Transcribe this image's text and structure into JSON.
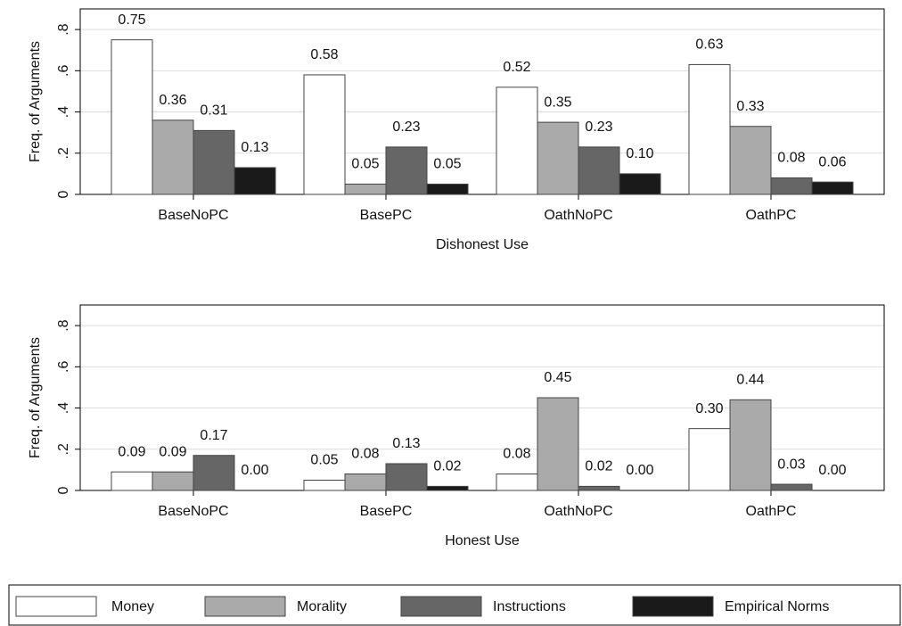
{
  "chart_data": [
    {
      "type": "bar",
      "ylabel": "Freq. of Arguments",
      "xlabel": "Dishonest Use",
      "categories": [
        "BaseNoPC",
        "BasePC",
        "OathNoPC",
        "OathPC"
      ],
      "series": [
        {
          "name": "Money",
          "color": "#ffffff",
          "values": [
            0.75,
            0.58,
            0.52,
            0.63
          ],
          "value_labels": [
            "0.75",
            "0.58",
            "0.52",
            "0.63"
          ]
        },
        {
          "name": "Morality",
          "color": "#aaaaaa",
          "values": [
            0.36,
            0.05,
            0.35,
            0.33
          ],
          "value_labels": [
            "0.36",
            "0.05",
            "0.35",
            "0.33"
          ]
        },
        {
          "name": "Instructions",
          "color": "#666666",
          "values": [
            0.31,
            0.23,
            0.23,
            0.08
          ],
          "value_labels": [
            "0.31",
            "0.23",
            "0.23",
            "0.08"
          ]
        },
        {
          "name": "Empirical Norms",
          "color": "#1a1a1a",
          "values": [
            0.13,
            0.05,
            0.1,
            0.06
          ],
          "value_labels": [
            "0.13",
            "0.05",
            "0.10",
            "0.06"
          ]
        }
      ],
      "ylim": [
        0,
        0.9
      ],
      "yticks": [
        0,
        {
          "value": 0.2,
          "label": ".2"
        },
        {
          "value": 0.4,
          "label": ".4"
        },
        {
          "value": 0.6,
          "label": ".6"
        },
        {
          "value": 0.8,
          "label": ".8"
        }
      ],
      "grid": true
    },
    {
      "type": "bar",
      "ylabel": "Freq. of Arguments",
      "xlabel": "Honest Use",
      "categories": [
        "BaseNoPC",
        "BasePC",
        "OathNoPC",
        "OathPC"
      ],
      "series": [
        {
          "name": "Money",
          "color": "#ffffff",
          "values": [
            0.09,
            0.05,
            0.08,
            0.3
          ],
          "value_labels": [
            "0.09",
            "0.05",
            "0.08",
            "0.30"
          ]
        },
        {
          "name": "Morality",
          "color": "#aaaaaa",
          "values": [
            0.09,
            0.08,
            0.45,
            0.44
          ],
          "value_labels": [
            "0.09",
            "0.08",
            "0.45",
            "0.44"
          ]
        },
        {
          "name": "Instructions",
          "color": "#666666",
          "values": [
            0.17,
            0.13,
            0.02,
            0.03
          ],
          "value_labels": [
            "0.17",
            "0.13",
            "0.02",
            "0.03"
          ]
        },
        {
          "name": "Empirical Norms",
          "color": "#1a1a1a",
          "values": [
            0,
            0.02,
            0,
            0
          ],
          "value_labels": [
            "0.00",
            "0.02",
            "0.00",
            "0.00"
          ]
        }
      ],
      "ylim": [
        0,
        0.9
      ],
      "yticks": [
        0,
        {
          "value": 0.2,
          "label": ".2"
        },
        {
          "value": 0.4,
          "label": ".4"
        },
        {
          "value": 0.6,
          "label": ".6"
        },
        {
          "value": 0.8,
          "label": ".8"
        }
      ],
      "grid": true
    }
  ]
}
